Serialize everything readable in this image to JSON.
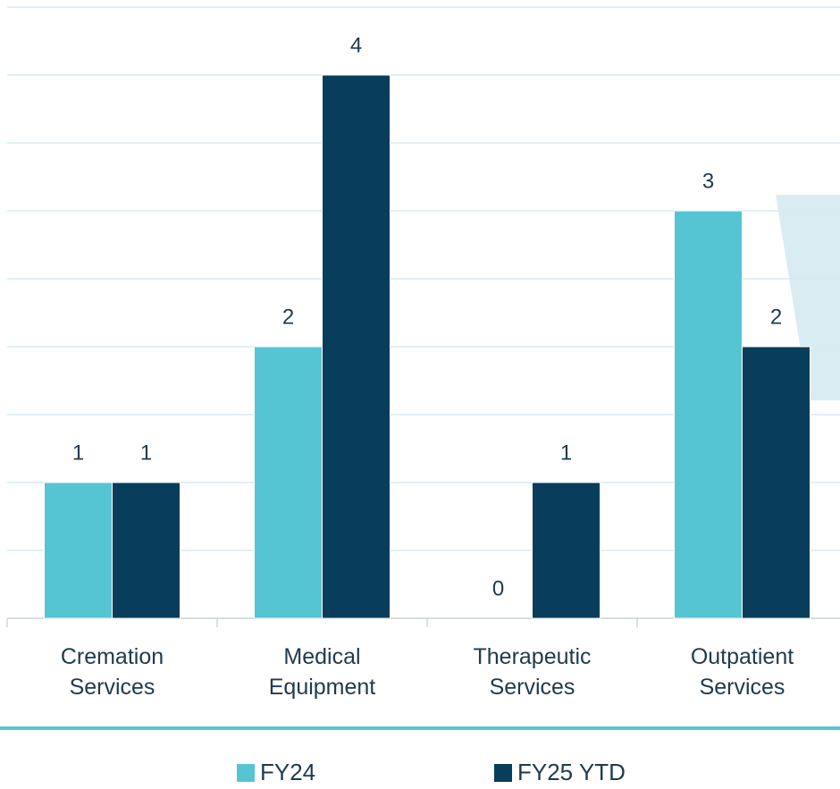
{
  "chart_data": {
    "type": "bar",
    "categories": [
      "Cremation Services",
      "Medical Equipment",
      "Therapeutic Services",
      "Outpatient Services"
    ],
    "series": [
      {
        "name": "FY24",
        "color": "#56c5d3",
        "values": [
          1,
          2,
          0,
          3
        ]
      },
      {
        "name": "FY25 YTD",
        "color": "#083d5c",
        "values": [
          1,
          4,
          1,
          2
        ]
      }
    ],
    "ylim": [
      0,
      4.5
    ],
    "yticks": [
      0,
      0.5,
      1,
      1.5,
      2,
      2.5,
      3,
      3.5,
      4,
      4.5
    ],
    "grid": true,
    "legend": "bottom"
  }
}
